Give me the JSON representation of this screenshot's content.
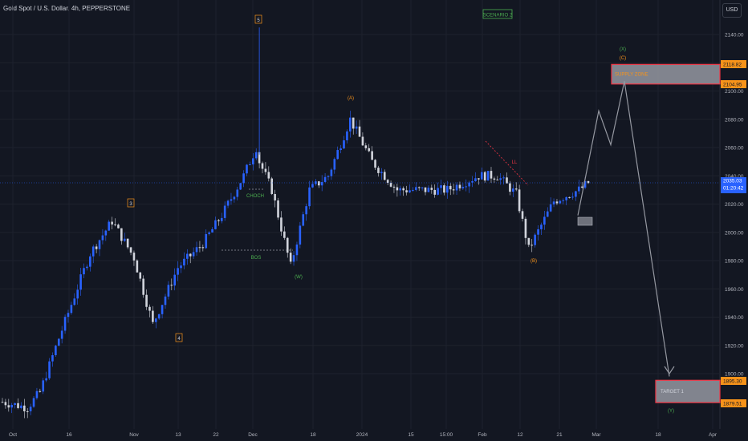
{
  "header": {
    "title": "Gold Spot / U.S. Dollar, 4h, PEPPERSTONE",
    "currency": "USD"
  },
  "chart_data": {
    "type": "candlestick",
    "title": "Gold Spot / U.S. Dollar, 4h, PEPPERSTONE",
    "ylim": [
      1875,
      2152
    ],
    "y_ticks": [
      1900,
      1920,
      1940,
      1960,
      1980,
      2000,
      2020,
      2040,
      2060,
      2080,
      2100,
      2120,
      2140
    ],
    "x_ticks": [
      "Oct",
      "16",
      "Nov",
      "13",
      "22",
      "Dec",
      "18",
      "2024",
      "15",
      "15:00",
      "Feb",
      "12",
      "21",
      "Mar",
      "18",
      "Apr"
    ],
    "price_anchors": [
      {
        "i": 0,
        "p": 1880
      },
      {
        "i": 8,
        "p": 1876
      },
      {
        "i": 12,
        "p": 1887
      },
      {
        "i": 18,
        "p": 1925
      },
      {
        "i": 28,
        "p": 1985
      },
      {
        "i": 35,
        "p": 2008
      },
      {
        "i": 42,
        "p": 1982
      },
      {
        "i": 48,
        "p": 1935
      },
      {
        "i": 56,
        "p": 1975
      },
      {
        "i": 64,
        "p": 1992
      },
      {
        "i": 70,
        "p": 2012
      },
      {
        "i": 77,
        "p": 2040
      },
      {
        "i": 81,
        "p": 2060
      },
      {
        "i": 82,
        "p": 2050
      },
      {
        "i": 86,
        "p": 2030
      },
      {
        "i": 92,
        "p": 1976
      },
      {
        "i": 98,
        "p": 2030
      },
      {
        "i": 104,
        "p": 2040
      },
      {
        "i": 111,
        "p": 2080
      },
      {
        "i": 118,
        "p": 2050
      },
      {
        "i": 126,
        "p": 2030
      },
      {
        "i": 132,
        "p": 2030
      },
      {
        "i": 142,
        "p": 2030
      },
      {
        "i": 152,
        "p": 2040
      },
      {
        "i": 158,
        "p": 2040
      },
      {
        "i": 164,
        "p": 2027
      },
      {
        "i": 168,
        "p": 1988
      },
      {
        "i": 176,
        "p": 2022
      },
      {
        "i": 184,
        "p": 2030
      },
      {
        "i": 187,
        "p": 2035
      }
    ],
    "current_price": "2035.03",
    "countdown": "01:20:42",
    "last_price": 2035.03,
    "annotations": {
      "scenario": "SCENARIO 2",
      "wave_3": "3",
      "wave_4": "4",
      "wave_5": "5",
      "wave_w": "(W)",
      "wave_a": "(A)",
      "wave_b": "(B)",
      "wave_x": "(X)",
      "wave_c": "(C)",
      "wave_y": "(Y)",
      "choch": "CHOCH",
      "bos": "BOS",
      "ll": "LL"
    },
    "supply_zone": {
      "label": "SUPPLY ZONE",
      "top": 2118.82,
      "bottom": 2104.95
    },
    "target_zone": {
      "label": "TARGET 1",
      "top": 1895.3,
      "bottom": 1879.51
    },
    "zone_price_labels": [
      "2118.82",
      "2104.95",
      "1895.30",
      "1879.51"
    ],
    "projection": [
      2012,
      2086,
      2062,
      2107,
      1898
    ],
    "colors": {
      "background": "#131722",
      "up": "#2962ff",
      "down": "#d1d4dc",
      "zone": "#9598a1",
      "zone_border": "#f23645",
      "price_tag": "#f7931a",
      "current": "#2962ff"
    }
  }
}
